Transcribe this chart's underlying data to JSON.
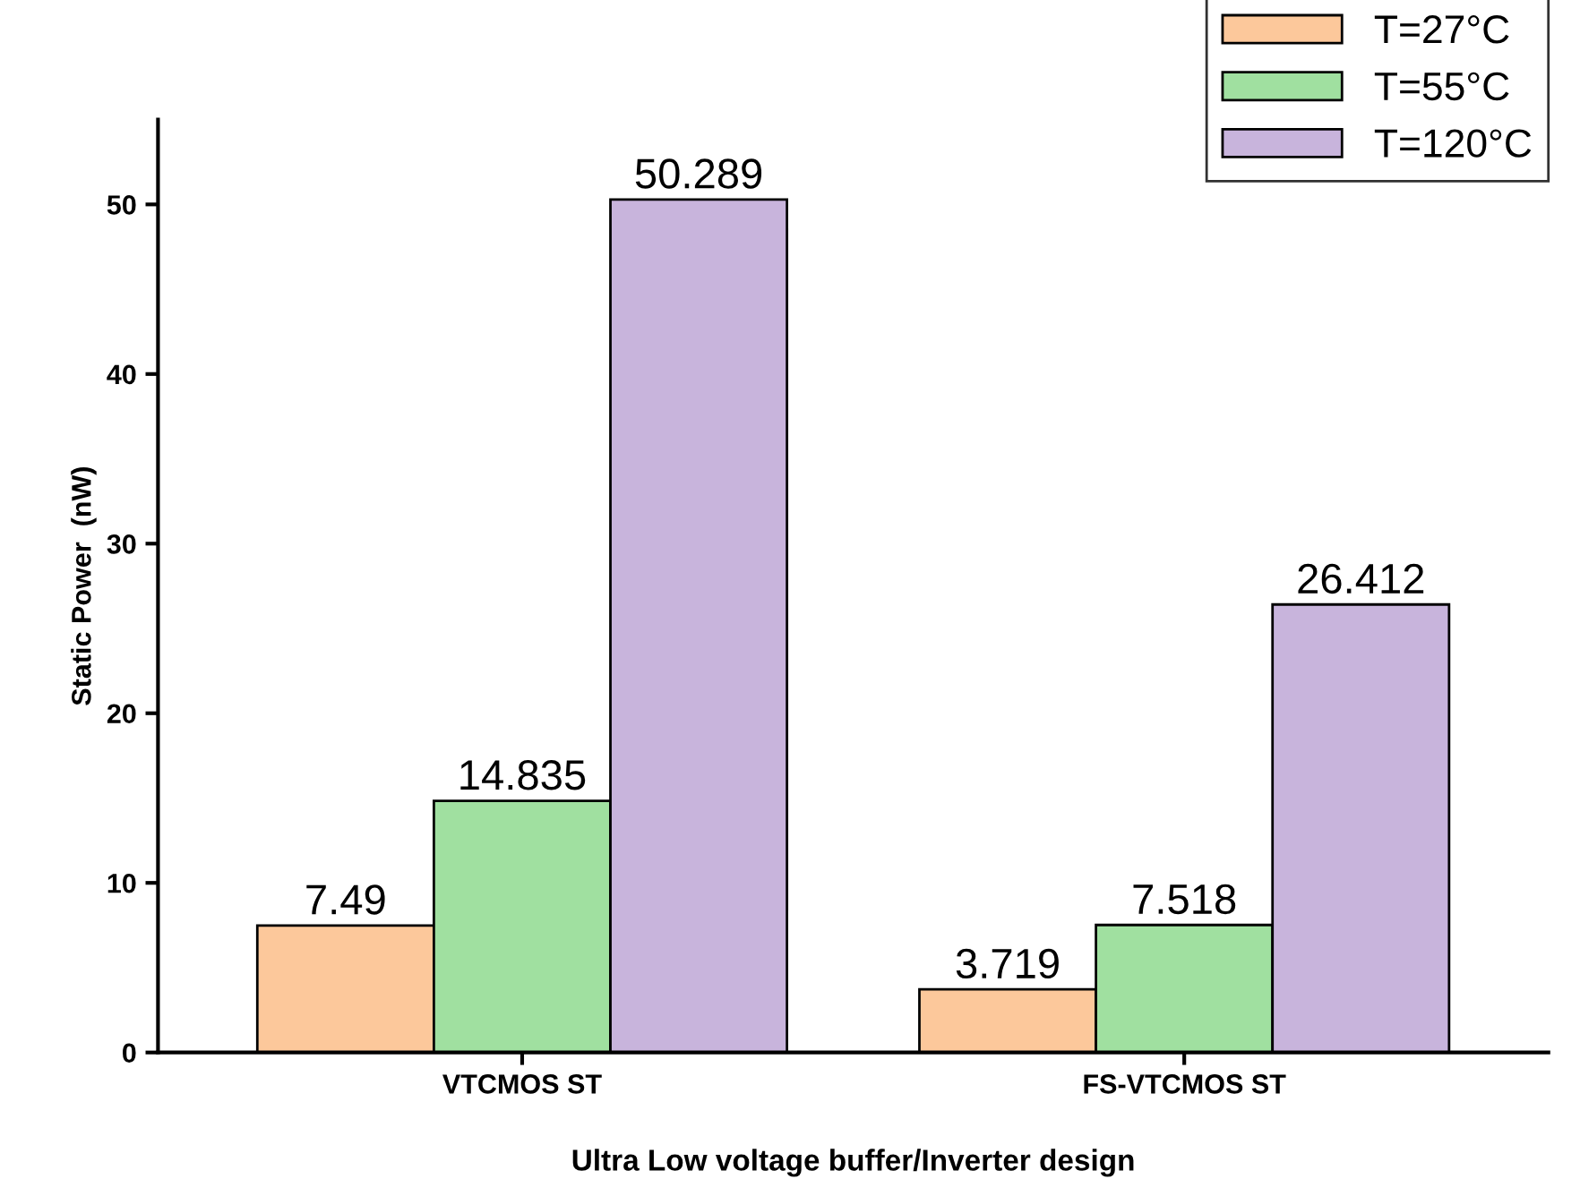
{
  "chart_data": {
    "type": "bar",
    "xlabel": "Ultra Low voltage buffer/Inverter design",
    "ylabel": "Static Power  (nW)",
    "categories": [
      "VTCMOS ST",
      "FS-VTCMOS ST"
    ],
    "series": [
      {
        "name": "T=27°C",
        "color": "#fcc89b",
        "values": [
          7.49,
          3.719
        ]
      },
      {
        "name": "T=55°C",
        "color": "#a0e0a0",
        "values": [
          14.835,
          7.518
        ]
      },
      {
        "name": "T=120°C",
        "color": "#c8b4dc",
        "values": [
          50.289,
          26.412
        ]
      }
    ],
    "ylim": [
      0,
      55
    ],
    "yticks": [
      0,
      10,
      20,
      30,
      40,
      50
    ],
    "data_labels": true,
    "legend": "top right",
    "grid": false
  }
}
